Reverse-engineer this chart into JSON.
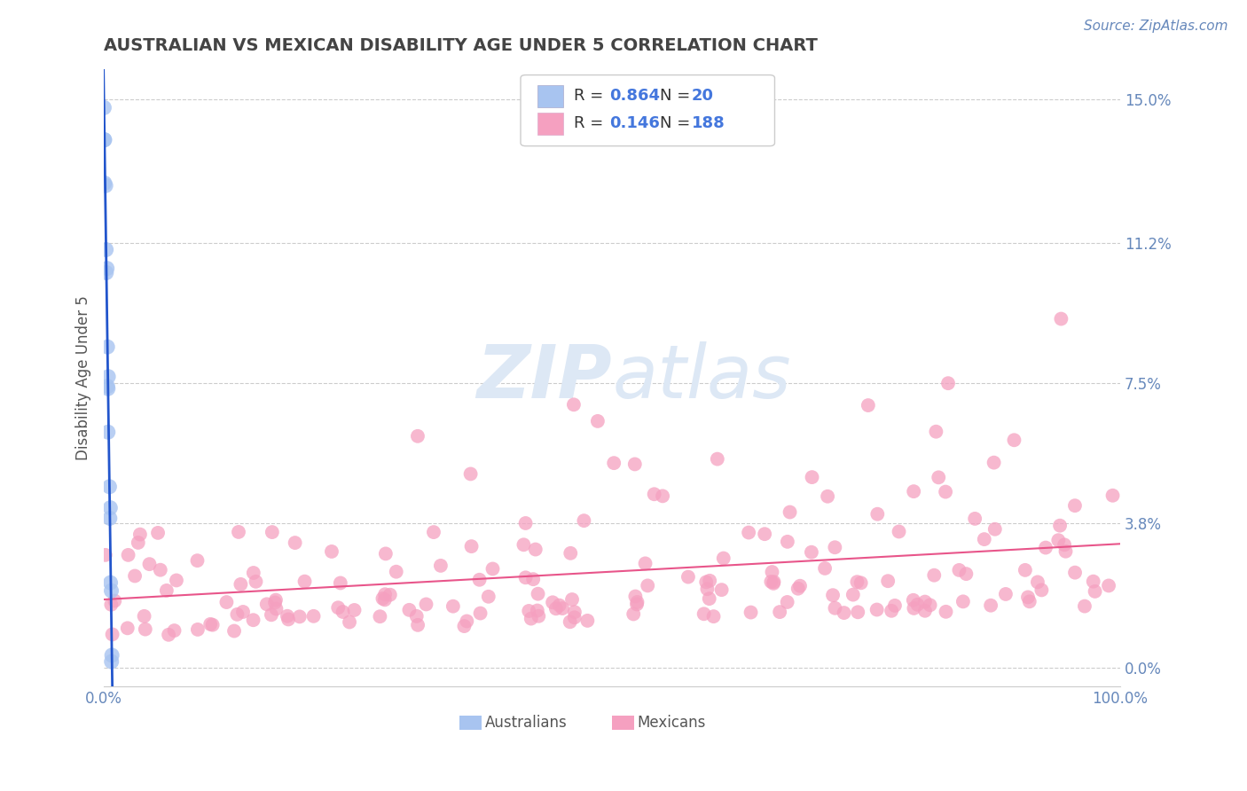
{
  "title": "AUSTRALIAN VS MEXICAN DISABILITY AGE UNDER 5 CORRELATION CHART",
  "source": "Source: ZipAtlas.com",
  "ylabel": "Disability Age Under 5",
  "xlim": [
    0.0,
    1.0
  ],
  "ylim": [
    -0.005,
    0.158
  ],
  "ytick_vals": [
    0.0,
    0.038,
    0.075,
    0.112,
    0.15
  ],
  "ytick_labels": [
    "0.0%",
    "3.8%",
    "7.5%",
    "11.2%",
    "15.0%"
  ],
  "xtick_vals": [
    0.0,
    1.0
  ],
  "xtick_labels": [
    "0.0%",
    "100.0%"
  ],
  "australian_R": 0.864,
  "australian_N": 20,
  "mexican_R": 0.146,
  "mexican_N": 188,
  "aus_color": "#a8c4f0",
  "mex_color": "#f5a0c0",
  "aus_line_color": "#2255cc",
  "mex_line_color": "#e8558a",
  "background": "#ffffff",
  "grid_color": "#cccccc",
  "title_color": "#444444",
  "tick_color": "#6688bb",
  "watermark_color": "#dde8f5",
  "legend_text_dark": "#333333",
  "legend_text_blue": "#4477dd",
  "source_color": "#6688bb",
  "font_size_title": 14,
  "font_size_ticks": 12,
  "font_size_ylabel": 12,
  "font_size_source": 11,
  "font_size_legend": 13,
  "font_size_watermark": 60,
  "font_size_bottom_legend": 12
}
